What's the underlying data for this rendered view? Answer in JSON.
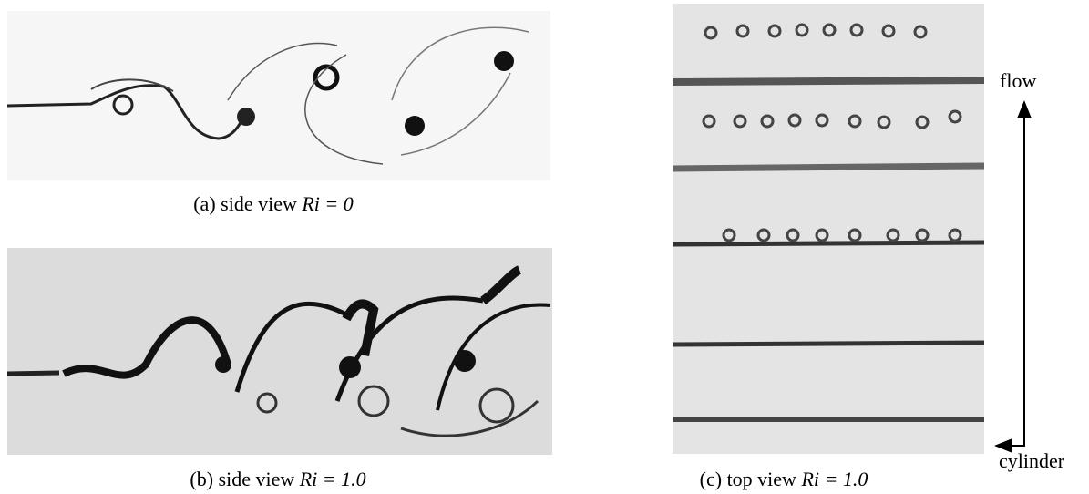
{
  "panels": [
    {
      "label": "(a)",
      "caption": "side view",
      "math": "Ri = 0"
    },
    {
      "label": "(b)",
      "caption": "side view",
      "math": "Ri = 1.0"
    },
    {
      "label": "(c)",
      "caption": "top view",
      "math": "Ri = 1.0"
    }
  ],
  "axes": {
    "flow": "flow",
    "cylinder": "cylinder"
  }
}
